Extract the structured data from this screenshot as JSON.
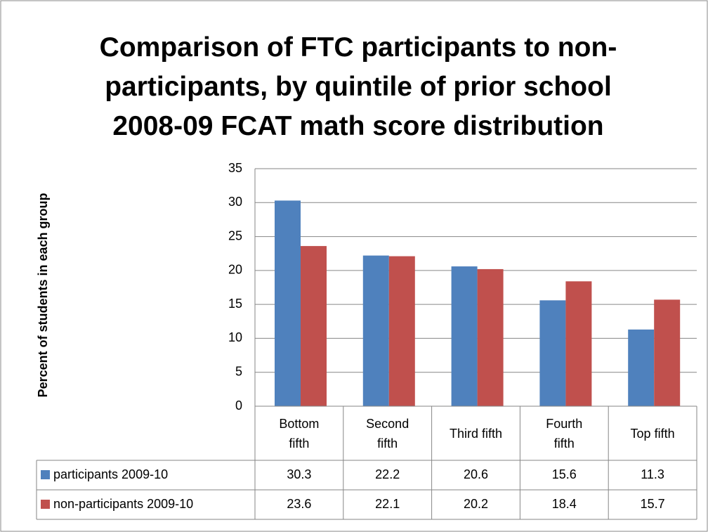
{
  "chart_data": {
    "type": "bar",
    "title": "Comparison of FTC participants to non-participants, by quintile of prior school 2008-09 FCAT math score distribution",
    "y_label": "Percent of students in each group",
    "categories": [
      "Bottom fifth",
      "Second fifth",
      "Third fifth",
      "Fourth fifth",
      "Top fifth"
    ],
    "series": [
      {
        "name": "participants 2009-10",
        "color": "#4f81bd",
        "values": [
          30.3,
          22.2,
          20.6,
          15.6,
          11.3
        ]
      },
      {
        "name": "non-participants 2009-10",
        "color": "#c0504d",
        "values": [
          23.6,
          22.1,
          20.2,
          18.4,
          15.7
        ]
      }
    ],
    "ylim": [
      0,
      35
    ],
    "yticks": [
      0,
      5,
      10,
      15,
      20,
      25,
      30,
      35
    ],
    "grid": true,
    "data_table": true
  }
}
